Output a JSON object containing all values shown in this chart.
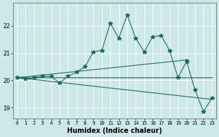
{
  "xlabel": "Humidex (Indice chaleur)",
  "bg_color": "#cce8e8",
  "grid_color": "#ffffff",
  "line_color": "#1a6b5a",
  "xlim": [
    -0.5,
    23.5
  ],
  "ylim": [
    18.6,
    22.85
  ],
  "xticks": [
    0,
    1,
    2,
    3,
    4,
    5,
    6,
    7,
    8,
    9,
    10,
    11,
    12,
    13,
    14,
    15,
    16,
    17,
    18,
    19,
    20,
    21,
    22,
    23
  ],
  "yticks": [
    19,
    20,
    21,
    22
  ],
  "line_main": {
    "x": [
      0,
      1,
      2,
      3,
      4,
      5,
      6,
      7,
      8,
      9,
      10,
      11,
      12,
      13,
      14,
      15,
      16,
      17,
      18,
      19,
      20,
      21,
      22,
      23
    ],
    "y": [
      20.1,
      20.05,
      20.1,
      20.15,
      20.15,
      19.9,
      20.15,
      20.3,
      20.5,
      21.05,
      21.1,
      22.1,
      21.55,
      22.4,
      21.55,
      21.05,
      21.6,
      21.65,
      21.1,
      20.1,
      20.7,
      19.65,
      18.85,
      19.35
    ]
  },
  "line_flat": {
    "x": [
      0,
      23
    ],
    "y": [
      20.1,
      20.1
    ]
  },
  "line_up": {
    "x": [
      0,
      20
    ],
    "y": [
      20.1,
      20.75
    ]
  },
  "line_down": {
    "x": [
      0,
      23
    ],
    "y": [
      20.1,
      19.3
    ]
  }
}
